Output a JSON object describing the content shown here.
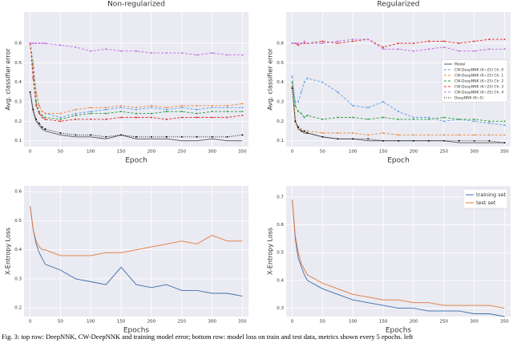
{
  "chart_data": [
    {
      "type": "line",
      "title": "Non-regularized",
      "xlabel": "Epoch",
      "ylabel": "Avg. classifier error",
      "x": [
        0,
        5,
        10,
        15,
        20,
        25,
        50,
        75,
        100,
        125,
        150,
        175,
        200,
        225,
        250,
        275,
        300,
        325,
        350
      ],
      "xlim": [
        -10,
        360
      ],
      "ylim": [
        0.07,
        0.76
      ],
      "xticks": [
        0,
        50,
        100,
        150,
        200,
        250,
        300,
        350
      ],
      "yticks": [
        0.1,
        0.2,
        0.3,
        0.4,
        0.5,
        0.6
      ],
      "grid": true,
      "series": [
        {
          "name": "Model",
          "color": "#555555",
          "style": "solid",
          "marker": false,
          "values": [
            0.35,
            0.25,
            0.2,
            0.18,
            0.16,
            0.15,
            0.13,
            0.12,
            0.12,
            0.11,
            0.13,
            0.11,
            0.11,
            0.11,
            0.1,
            0.1,
            0.11,
            0.1,
            0.1
          ]
        },
        {
          "name": "CW-DeepNNK (K=25) Ch: 0",
          "color": "#5aa0e6",
          "style": "dashed",
          "marker": true,
          "values": [
            0.6,
            0.5,
            0.35,
            0.28,
            0.25,
            0.24,
            0.22,
            0.24,
            0.25,
            0.26,
            0.27,
            0.26,
            0.27,
            0.26,
            0.27,
            0.26,
            0.27,
            0.27,
            0.27
          ]
        },
        {
          "name": "CW-DeepNNK (K=25) Ch: 1",
          "color": "#f08a3c",
          "style": "dashed",
          "marker": true,
          "values": [
            0.6,
            0.48,
            0.34,
            0.28,
            0.25,
            0.24,
            0.24,
            0.26,
            0.27,
            0.27,
            0.28,
            0.27,
            0.28,
            0.27,
            0.28,
            0.28,
            0.28,
            0.28,
            0.29
          ]
        },
        {
          "name": "CW-DeepNNK (K=25) Ch: 2",
          "color": "#2e9e3e",
          "style": "dashed",
          "marker": true,
          "values": [
            0.6,
            0.45,
            0.3,
            0.25,
            0.23,
            0.22,
            0.21,
            0.23,
            0.24,
            0.24,
            0.25,
            0.24,
            0.24,
            0.25,
            0.25,
            0.24,
            0.25,
            0.25,
            0.25
          ]
        },
        {
          "name": "CW-DeepNNK (K=25) Ch: 3",
          "color": "#e03030",
          "style": "dashed",
          "marker": true,
          "values": [
            0.6,
            0.42,
            0.28,
            0.24,
            0.22,
            0.21,
            0.2,
            0.21,
            0.21,
            0.21,
            0.22,
            0.22,
            0.22,
            0.21,
            0.22,
            0.22,
            0.22,
            0.22,
            0.23
          ]
        },
        {
          "name": "CW-DeepNNK (K=25) Ch: 4",
          "color": "#c46ee0",
          "style": "dashed",
          "marker": true,
          "values": [
            0.6,
            0.6,
            0.6,
            0.6,
            0.6,
            0.6,
            0.59,
            0.58,
            0.56,
            0.57,
            0.56,
            0.56,
            0.55,
            0.55,
            0.55,
            0.54,
            0.55,
            0.54,
            0.54
          ]
        },
        {
          "name": "DeepNNK (K=5)",
          "color": "#111111",
          "style": "dotted",
          "marker": true,
          "values": [
            0.35,
            0.26,
            0.21,
            0.19,
            0.17,
            0.16,
            0.14,
            0.13,
            0.13,
            0.12,
            0.13,
            0.12,
            0.12,
            0.12,
            0.12,
            0.12,
            0.12,
            0.12,
            0.13
          ]
        }
      ]
    },
    {
      "type": "line",
      "title": "Regularized",
      "xlabel": "Epoch",
      "ylabel": "Avg. classifier error",
      "legend": "center right",
      "x": [
        0,
        5,
        10,
        15,
        20,
        25,
        50,
        75,
        100,
        125,
        150,
        175,
        200,
        225,
        250,
        275,
        300,
        325,
        350
      ],
      "xlim": [
        -10,
        360
      ],
      "ylim": [
        0.07,
        0.76
      ],
      "xticks": [
        0,
        50,
        100,
        150,
        200,
        250,
        300,
        350
      ],
      "yticks": [
        0.1,
        0.2,
        0.3,
        0.4,
        0.5,
        0.6
      ],
      "grid": true,
      "series": [
        {
          "name": "Model",
          "color": "#555555",
          "style": "solid",
          "marker": false,
          "values": [
            0.38,
            0.2,
            0.16,
            0.15,
            0.14,
            0.14,
            0.12,
            0.11,
            0.11,
            0.1,
            0.1,
            0.1,
            0.1,
            0.1,
            0.1,
            0.09,
            0.09,
            0.09,
            0.09
          ]
        },
        {
          "name": "CW-DeepNNK (K=25) Ch: 0",
          "color": "#5aa0e6",
          "style": "dashed",
          "marker": true,
          "values": [
            0.43,
            0.3,
            0.3,
            0.35,
            0.4,
            0.42,
            0.4,
            0.35,
            0.28,
            0.27,
            0.3,
            0.25,
            0.22,
            0.22,
            0.2,
            0.21,
            0.2,
            0.19,
            0.18
          ]
        },
        {
          "name": "CW-DeepNNK (K=25) Ch: 1",
          "color": "#f08a3c",
          "style": "dashed",
          "marker": true,
          "values": [
            0.38,
            0.2,
            0.17,
            0.16,
            0.15,
            0.15,
            0.14,
            0.14,
            0.14,
            0.13,
            0.14,
            0.13,
            0.13,
            0.13,
            0.13,
            0.13,
            0.13,
            0.13,
            0.13
          ]
        },
        {
          "name": "CW-DeepNNK (K=25) Ch: 2",
          "color": "#2e9e3e",
          "style": "dashed",
          "marker": true,
          "values": [
            0.4,
            0.28,
            0.25,
            0.24,
            0.22,
            0.23,
            0.21,
            0.22,
            0.22,
            0.21,
            0.22,
            0.21,
            0.21,
            0.21,
            0.22,
            0.21,
            0.21,
            0.2,
            0.2
          ]
        },
        {
          "name": "CW-DeepNNK (K=25) Ch: 3",
          "color": "#e03030",
          "style": "dashed",
          "marker": true,
          "values": [
            0.6,
            0.6,
            0.59,
            0.6,
            0.6,
            0.6,
            0.61,
            0.6,
            0.61,
            0.62,
            0.58,
            0.6,
            0.6,
            0.61,
            0.61,
            0.6,
            0.61,
            0.62,
            0.62
          ]
        },
        {
          "name": "CW-DeepNNK (K=25) Ch: 4",
          "color": "#c46ee0",
          "style": "dashed",
          "marker": true,
          "values": [
            0.6,
            0.6,
            0.6,
            0.6,
            0.61,
            0.6,
            0.6,
            0.61,
            0.62,
            0.62,
            0.57,
            0.57,
            0.56,
            0.57,
            0.58,
            0.56,
            0.56,
            0.57,
            0.57
          ]
        },
        {
          "name": "DeepNNK (K=5)",
          "color": "#111111",
          "style": "dotted",
          "marker": true,
          "values": [
            0.37,
            0.2,
            0.17,
            0.15,
            0.15,
            0.14,
            0.12,
            0.11,
            0.11,
            0.11,
            0.1,
            0.1,
            0.1,
            0.1,
            0.1,
            0.1,
            0.1,
            0.1,
            0.09
          ]
        }
      ]
    },
    {
      "type": "line",
      "xlabel": "Epochs",
      "ylabel": "X-Entropy Loss",
      "x": [
        0,
        5,
        10,
        15,
        20,
        25,
        50,
        75,
        100,
        125,
        150,
        175,
        200,
        225,
        250,
        275,
        300,
        325,
        350
      ],
      "xlim": [
        -10,
        360
      ],
      "ylim": [
        0.17,
        0.62
      ],
      "xticks": [
        0,
        50,
        100,
        150,
        200,
        250,
        300,
        350
      ],
      "yticks": [
        0.2,
        0.3,
        0.4,
        0.5,
        0.6
      ],
      "grid": true,
      "series": [
        {
          "name": "training set",
          "color": "#3f6eb0",
          "style": "solid",
          "marker": false,
          "values": [
            0.55,
            0.47,
            0.42,
            0.39,
            0.37,
            0.35,
            0.33,
            0.3,
            0.29,
            0.28,
            0.34,
            0.28,
            0.27,
            0.28,
            0.26,
            0.26,
            0.25,
            0.25,
            0.24
          ]
        },
        {
          "name": "test set",
          "color": "#e0793a",
          "style": "solid",
          "marker": false,
          "values": [
            0.55,
            0.47,
            0.43,
            0.41,
            0.4,
            0.4,
            0.38,
            0.38,
            0.38,
            0.39,
            0.39,
            0.4,
            0.41,
            0.42,
            0.43,
            0.42,
            0.45,
            0.43,
            0.43
          ]
        }
      ]
    },
    {
      "type": "line",
      "xlabel": "Epochs",
      "ylabel": "X-Entropy Loss",
      "legend": "upper right",
      "x": [
        0,
        5,
        10,
        15,
        20,
        25,
        50,
        75,
        100,
        125,
        150,
        175,
        200,
        225,
        250,
        275,
        300,
        325,
        350
      ],
      "xlim": [
        -10,
        360
      ],
      "ylim": [
        0.27,
        0.74
      ],
      "xticks": [
        0,
        50,
        100,
        150,
        200,
        250,
        300,
        350
      ],
      "yticks": [
        0.3,
        0.4,
        0.5,
        0.6,
        0.7
      ],
      "grid": true,
      "series": [
        {
          "name": "training set",
          "color": "#3f6eb0",
          "style": "solid",
          "marker": false,
          "values": [
            0.69,
            0.55,
            0.48,
            0.45,
            0.42,
            0.4,
            0.37,
            0.35,
            0.33,
            0.32,
            0.31,
            0.3,
            0.3,
            0.29,
            0.29,
            0.29,
            0.28,
            0.28,
            0.27
          ]
        },
        {
          "name": "test set",
          "color": "#e0793a",
          "style": "solid",
          "marker": false,
          "values": [
            0.69,
            0.56,
            0.5,
            0.46,
            0.44,
            0.42,
            0.39,
            0.37,
            0.35,
            0.34,
            0.33,
            0.33,
            0.32,
            0.32,
            0.31,
            0.31,
            0.31,
            0.31,
            0.3
          ]
        }
      ]
    }
  ],
  "caption": "Fig. 3: top row: DeepNNK, CW-DeepNNK and training model error; bottom row: model loss on train and test data, metrics shown every 5 epochs. left"
}
